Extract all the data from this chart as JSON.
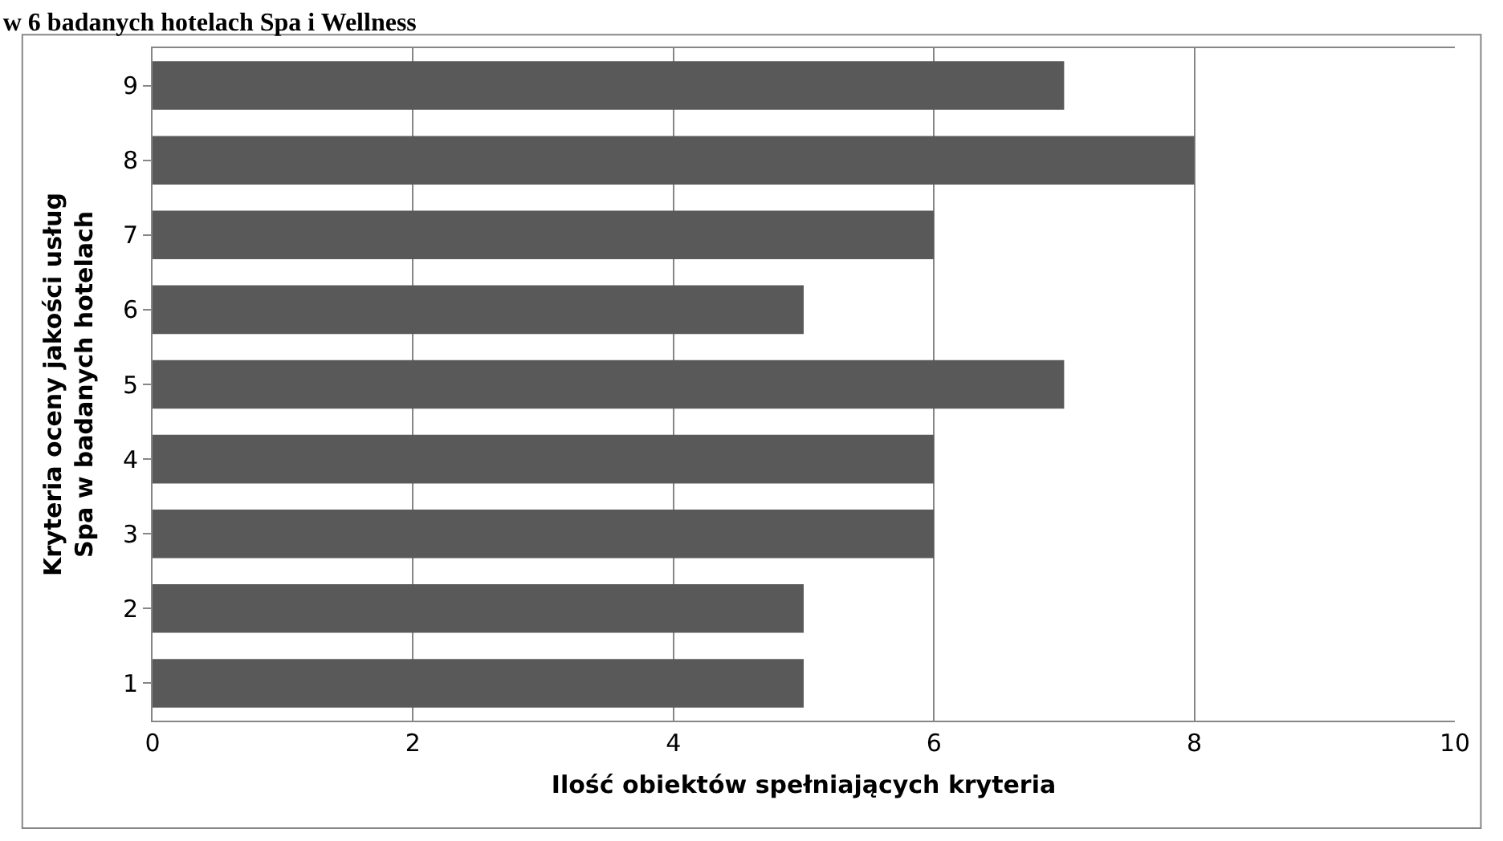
{
  "chart_data": {
    "type": "bar",
    "orientation": "horizontal",
    "title": "w 6 badanych hotelach Spa i Wellness",
    "categories": [
      "9",
      "8",
      "7",
      "6",
      "5",
      "4",
      "3",
      "2",
      "1"
    ],
    "values": [
      7,
      8,
      6,
      5,
      7,
      6,
      6,
      5,
      5
    ],
    "color": "#595959",
    "xlim": [
      0,
      10
    ],
    "xticks": [
      0,
      2,
      4,
      6,
      8,
      10
    ],
    "grid": "x",
    "xlabel": "Ilość obiektów spełniających kryteria",
    "ylabel": "Kryteria oceny jakości usług Spa w badanych hotelach"
  }
}
